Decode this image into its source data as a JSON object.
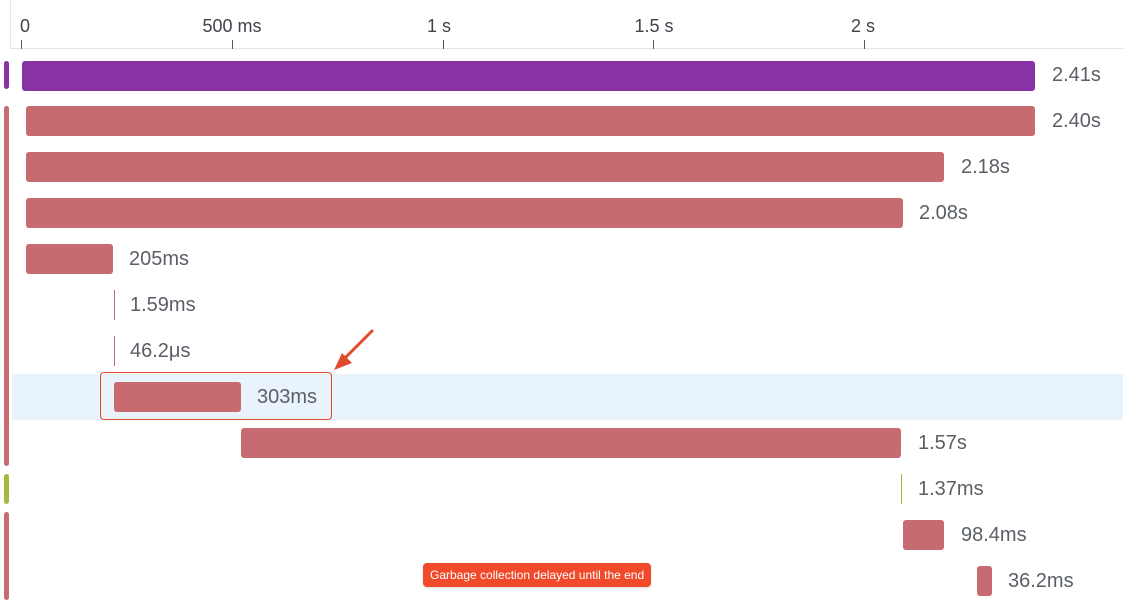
{
  "colors": {
    "root_bar": "#8833a3",
    "span_bar": "#c86b70",
    "gc_marker": "#a3b83c",
    "selected_row_bg": "#e8f3fc",
    "highlight": "#e24a2f",
    "tooltip_bg": "#f04a2a"
  },
  "axis": {
    "ticks": [
      "0",
      "500 ms",
      "1 s",
      "1.5 s",
      "2 s"
    ]
  },
  "spans": [
    {
      "duration": "2.41s",
      "selected": false
    },
    {
      "duration": "2.40s",
      "selected": false
    },
    {
      "duration": "2.18s",
      "selected": false
    },
    {
      "duration": "2.08s",
      "selected": false
    },
    {
      "duration": "205ms",
      "selected": false
    },
    {
      "duration": "1.59ms",
      "selected": false
    },
    {
      "duration": "46.2μs",
      "selected": false
    },
    {
      "duration": "303ms",
      "selected": true
    },
    {
      "duration": "1.57s",
      "selected": false
    },
    {
      "duration": "1.37ms",
      "selected": false
    },
    {
      "duration": "98.4ms",
      "selected": false
    },
    {
      "duration": "36.2ms",
      "selected": false
    }
  ],
  "annotation": {
    "tooltip_text": "Garbage collection delayed until the end"
  }
}
